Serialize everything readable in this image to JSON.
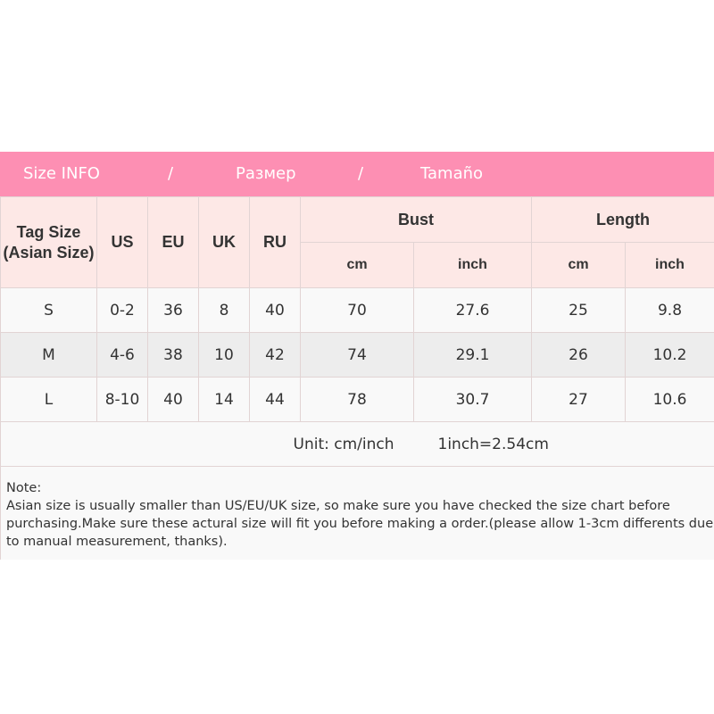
{
  "banner": {
    "en": "Size INFO",
    "sep1": "/",
    "ru": "Размер",
    "sep2": "/",
    "es": "Tamaño",
    "color": "#fd8fb3"
  },
  "header": {
    "tag_size": "Tag Size (Asian Size)",
    "us": "US",
    "eu": "EU",
    "uk": "UK",
    "ru": "RU",
    "bust": "Bust",
    "length": "Length",
    "bust_cm": "cm",
    "bust_inch": "inch",
    "length_cm": "cm",
    "length_inch": "inch"
  },
  "rows": [
    {
      "tag": "S",
      "us": "0-2",
      "eu": "36",
      "uk": "8",
      "ru": "40",
      "bust_cm": "70",
      "bust_inch": "27.6",
      "length_cm": "25",
      "length_inch": "9.8"
    },
    {
      "tag": "M",
      "us": "4-6",
      "eu": "38",
      "uk": "10",
      "ru": "42",
      "bust_cm": "74",
      "bust_inch": "29.1",
      "length_cm": "26",
      "length_inch": "10.2"
    },
    {
      "tag": "L",
      "us": "8-10",
      "eu": "40",
      "uk": "14",
      "ru": "44",
      "bust_cm": "78",
      "bust_inch": "30.7",
      "length_cm": "27",
      "length_inch": "10.6"
    }
  ],
  "unit": {
    "label": "Unit: cm/inch",
    "conversion": "1inch=2.54cm"
  },
  "note": {
    "title": "Note:",
    "text": "Asian size is usually smaller than US/EU/UK size, so make sure you have checked the size chart before purchasing.Make sure these actural size will fit you before making a order.(please allow 1-3cm differents due to manual measurement, thanks)."
  }
}
